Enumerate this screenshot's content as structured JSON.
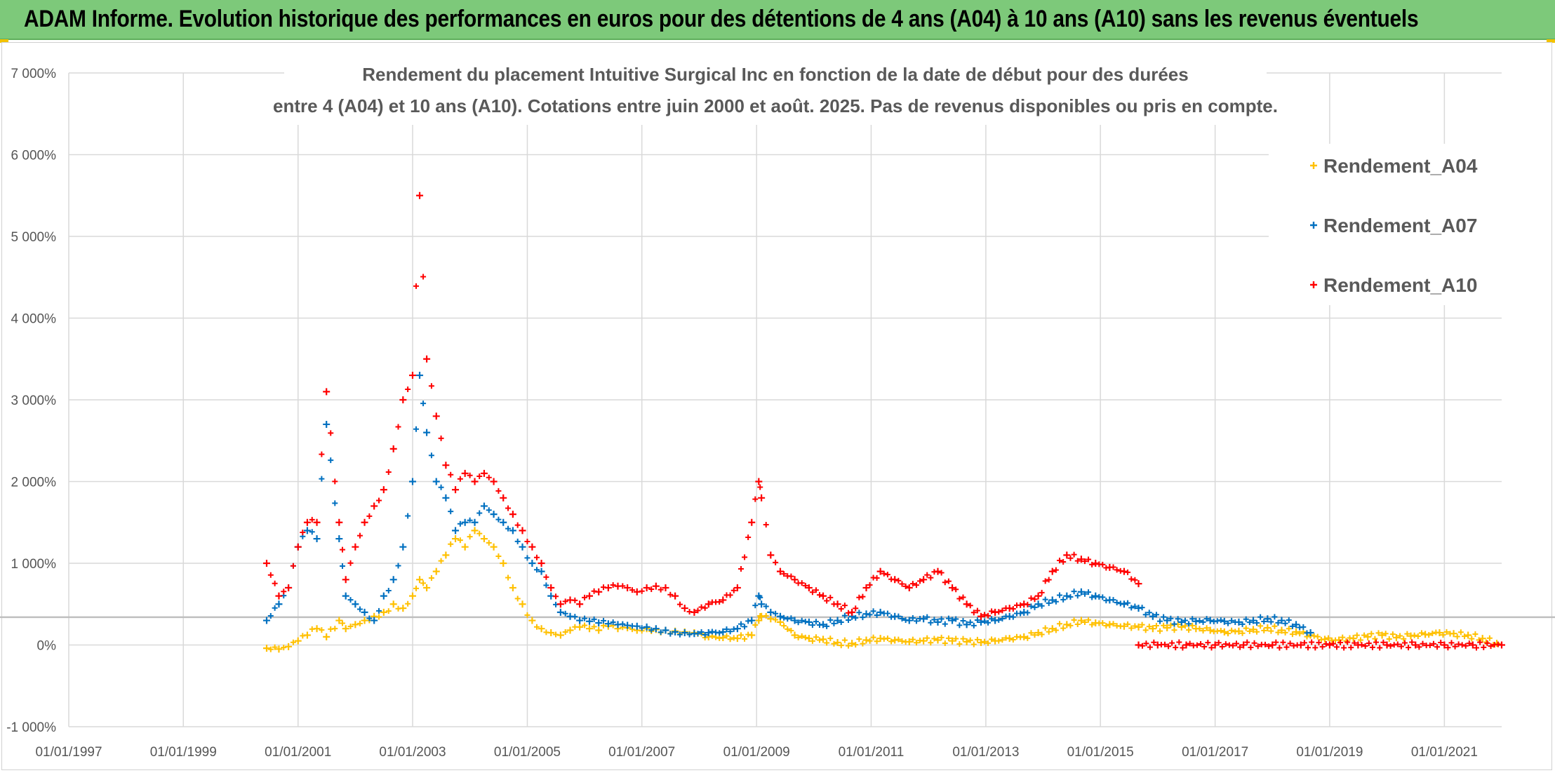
{
  "header": {
    "title": "ADAM Informe. Evolution historique des performances en euros pour des détentions de 4 ans (A04) à 10 ans (A10) sans les revenus éventuels"
  },
  "colors": {
    "banner": "#7dc97a",
    "accent": "#f2c200",
    "A04": "#ffc000",
    "A07": "#0070c0",
    "A10": "#ff0000"
  },
  "chart_data": {
    "type": "scatter",
    "marker": "plus",
    "title_lines": [
      "Rendement du placement Intuitive Surgical Inc en fonction de la date de début pour des durées",
      "entre 4 (A04) et 10 ans (A10). Cotations entre juin 2000 et août. 2025. Pas de revenus disponibles ou pris en compte."
    ],
    "x_axis": {
      "type": "date",
      "range": [
        "1997-01-01",
        "2022-01-01"
      ],
      "tick_labels": [
        "01/01/1997",
        "01/01/1999",
        "01/01/2001",
        "01/01/2003",
        "01/01/2005",
        "01/01/2007",
        "01/01/2009",
        "01/01/2011",
        "01/01/2013",
        "01/01/2015",
        "01/01/2017",
        "01/01/2019",
        "01/01/2021"
      ],
      "tick_dates": [
        "1997-01-01",
        "1999-01-01",
        "2001-01-01",
        "2003-01-01",
        "2005-01-01",
        "2007-01-01",
        "2009-01-01",
        "2011-01-01",
        "2013-01-01",
        "2015-01-01",
        "2017-01-01",
        "2019-01-01",
        "2021-01-01"
      ]
    },
    "y_axis": {
      "range": [
        -1000,
        7000
      ],
      "unit": "%",
      "tick_values": [
        -1000,
        0,
        1000,
        2000,
        3000,
        4000,
        5000,
        6000,
        7000
      ],
      "tick_labels": [
        "-1 000%",
        "0%",
        "1 000%",
        "2 000%",
        "3 000%",
        "4 000%",
        "5 000%",
        "6 000%",
        "7 000%"
      ]
    },
    "reference_line_y": 340,
    "grid": true,
    "legend_position": "top-right",
    "series": [
      {
        "name": "Rendement_A04",
        "color_key": "A04",
        "x": [
          "2000-06-15",
          "2000-09-01",
          "2000-11-01",
          "2001-01-01",
          "2001-03-01",
          "2001-05-01",
          "2001-07-01",
          "2001-09-20",
          "2001-11-01",
          "2002-01-01",
          "2002-03-01",
          "2002-05-01",
          "2002-07-01",
          "2002-09-01",
          "2002-11-01",
          "2003-01-01",
          "2003-02-15",
          "2003-04-01",
          "2003-06-01",
          "2003-08-01",
          "2003-10-01",
          "2003-12-01",
          "2004-02-01",
          "2004-04-01",
          "2004-06-01",
          "2004-08-01",
          "2004-10-01",
          "2004-12-01",
          "2005-02-01",
          "2005-04-01",
          "2005-06-01",
          "2005-08-01",
          "2005-10-01",
          "2005-12-01",
          "2006-02-01",
          "2006-04-01",
          "2006-06-01",
          "2006-08-01",
          "2006-10-01",
          "2006-12-01",
          "2007-02-01",
          "2007-04-01",
          "2007-06-01",
          "2007-08-01",
          "2007-10-01",
          "2007-12-01",
          "2008-03-01",
          "2008-06-01",
          "2008-09-01",
          "2008-12-01",
          "2009-01-15",
          "2009-02-01",
          "2009-04-01",
          "2009-06-01",
          "2009-09-01",
          "2009-12-01",
          "2010-03-01",
          "2010-06-01",
          "2010-09-01",
          "2010-12-01",
          "2011-03-01",
          "2011-06-01",
          "2011-09-01",
          "2011-12-01",
          "2012-03-01",
          "2012-06-01",
          "2012-09-01",
          "2012-12-01",
          "2013-03-01",
          "2013-06-01",
          "2013-09-01",
          "2013-12-01",
          "2014-03-01",
          "2014-06-01",
          "2014-09-01",
          "2014-12-01",
          "2015-03-01",
          "2015-06-01",
          "2015-09-01",
          "2015-12-01",
          "2016-03-01",
          "2016-06-01",
          "2016-09-01",
          "2016-12-01",
          "2017-03-01",
          "2017-06-01",
          "2017-09-01",
          "2017-12-01",
          "2018-03-01",
          "2018-06-01",
          "2018-09-01",
          "2018-12-01",
          "2019-03-01",
          "2019-06-01",
          "2019-09-01",
          "2019-12-01",
          "2020-03-01",
          "2020-06-01",
          "2020-09-01",
          "2020-12-01",
          "2021-03-01",
          "2021-06-01",
          "2021-09-01",
          "2021-12-01"
        ],
        "y": [
          -40,
          -50,
          -20,
          50,
          120,
          200,
          100,
          300,
          200,
          250,
          300,
          350,
          400,
          500,
          450,
          600,
          800,
          700,
          900,
          1100,
          1300,
          1200,
          1400,
          1300,
          1200,
          1000,
          700,
          500,
          300,
          200,
          150,
          120,
          180,
          220,
          200,
          180,
          230,
          200,
          210,
          180,
          200,
          190,
          180,
          170,
          160,
          150,
          100,
          90,
          80,
          120,
          300,
          350,
          320,
          280,
          120,
          80,
          70,
          30,
          20,
          60,
          80,
          60,
          40,
          50,
          60,
          50,
          40,
          30,
          50,
          80,
          100,
          150,
          200,
          250,
          300,
          270,
          250,
          230,
          220,
          200,
          210,
          220,
          200,
          180,
          160,
          170,
          190,
          210,
          180,
          160,
          120,
          70,
          60,
          80,
          100,
          120,
          90,
          110,
          130,
          150,
          140,
          120,
          80,
          20
        ]
      },
      {
        "name": "Rendement_A07",
        "color_key": "A07",
        "x": [
          "2000-06-15",
          "2000-09-01",
          "2000-11-01",
          "2001-01-01",
          "2001-03-01",
          "2001-05-01",
          "2001-07-01",
          "2001-09-20",
          "2001-11-01",
          "2002-01-01",
          "2002-03-01",
          "2002-05-01",
          "2002-07-01",
          "2002-09-01",
          "2002-11-01",
          "2003-01-01",
          "2003-02-15",
          "2003-04-01",
          "2003-06-01",
          "2003-08-01",
          "2003-10-01",
          "2003-12-01",
          "2004-02-01",
          "2004-04-01",
          "2004-06-01",
          "2004-08-01",
          "2004-10-01",
          "2004-12-01",
          "2005-02-01",
          "2005-04-01",
          "2005-06-01",
          "2005-08-01",
          "2005-10-01",
          "2005-12-01",
          "2006-02-01",
          "2006-04-01",
          "2006-06-01",
          "2006-08-01",
          "2006-10-01",
          "2006-12-01",
          "2007-02-01",
          "2007-04-01",
          "2007-06-01",
          "2007-08-01",
          "2007-10-01",
          "2007-12-01",
          "2008-03-01",
          "2008-06-01",
          "2008-09-01",
          "2008-12-01",
          "2009-01-15",
          "2009-02-01",
          "2009-04-01",
          "2009-06-01",
          "2009-09-01",
          "2009-12-01",
          "2010-03-01",
          "2010-06-01",
          "2010-09-01",
          "2010-12-01",
          "2011-03-01",
          "2011-06-01",
          "2011-09-01",
          "2011-12-01",
          "2012-03-01",
          "2012-06-01",
          "2012-09-01",
          "2012-12-01",
          "2013-03-01",
          "2013-06-01",
          "2013-09-01",
          "2013-12-01",
          "2014-03-01",
          "2014-06-01",
          "2014-09-01",
          "2014-12-01",
          "2015-03-01",
          "2015-06-01",
          "2015-09-01",
          "2015-12-01",
          "2016-03-01",
          "2016-06-01",
          "2016-09-01",
          "2016-12-01",
          "2017-03-01",
          "2017-06-01",
          "2017-09-01",
          "2017-12-01",
          "2018-03-01",
          "2018-06-01",
          "2018-09-01"
        ],
        "y": [
          300,
          500,
          700,
          1200,
          1400,
          1300,
          2700,
          1300,
          600,
          500,
          400,
          300,
          600,
          800,
          1200,
          2000,
          3300,
          2600,
          2000,
          1800,
          1400,
          1500,
          1500,
          1700,
          1600,
          1500,
          1400,
          1200,
          1000,
          900,
          600,
          400,
          350,
          300,
          290,
          270,
          260,
          250,
          240,
          230,
          220,
          200,
          180,
          160,
          150,
          140,
          150,
          160,
          200,
          300,
          600,
          500,
          400,
          350,
          300,
          280,
          250,
          300,
          350,
          380,
          400,
          350,
          300,
          320,
          280,
          300,
          250,
          280,
          300,
          350,
          400,
          500,
          550,
          600,
          650,
          600,
          550,
          500,
          450,
          350,
          300,
          280,
          290,
          300,
          290,
          280,
          300,
          320,
          300,
          250,
          150
        ]
      },
      {
        "name": "Rendement_A10",
        "color_key": "A10",
        "x": [
          "2000-06-15",
          "2000-09-01",
          "2000-11-01",
          "2001-01-01",
          "2001-03-01",
          "2001-05-01",
          "2001-07-01",
          "2001-09-20",
          "2001-11-01",
          "2002-01-01",
          "2002-03-01",
          "2002-05-01",
          "2002-07-01",
          "2002-09-01",
          "2002-11-01",
          "2003-01-01",
          "2003-02-15",
          "2003-04-01",
          "2003-06-01",
          "2003-08-01",
          "2003-10-01",
          "2003-12-01",
          "2004-02-01",
          "2004-04-01",
          "2004-06-01",
          "2004-08-01",
          "2004-10-01",
          "2004-12-01",
          "2005-02-01",
          "2005-04-01",
          "2005-06-01",
          "2005-08-01",
          "2005-10-01",
          "2005-12-01",
          "2006-02-01",
          "2006-04-01",
          "2006-06-01",
          "2006-08-01",
          "2006-10-01",
          "2006-12-01",
          "2007-02-01",
          "2007-04-01",
          "2007-06-01",
          "2007-08-01",
          "2007-10-01",
          "2007-12-01",
          "2008-03-01",
          "2008-06-01",
          "2008-09-01",
          "2008-12-01",
          "2009-01-15",
          "2009-02-01",
          "2009-04-01",
          "2009-06-01",
          "2009-09-01",
          "2009-12-01",
          "2010-03-01",
          "2010-06-01",
          "2010-09-01",
          "2010-12-01",
          "2011-03-01",
          "2011-06-01",
          "2011-09-01",
          "2011-12-01",
          "2012-03-01",
          "2012-06-01",
          "2012-09-01",
          "2012-12-01",
          "2013-03-01",
          "2013-06-01",
          "2013-09-01",
          "2013-12-01",
          "2014-03-01",
          "2014-06-01",
          "2014-09-01",
          "2014-12-01",
          "2015-03-01",
          "2015-06-01",
          "2015-09-01"
        ],
        "y": [
          1000,
          600,
          700,
          1200,
          1500,
          1500,
          3100,
          1500,
          800,
          1200,
          1500,
          1700,
          1900,
          2400,
          3000,
          3300,
          5500,
          3500,
          2800,
          2200,
          1900,
          2100,
          2000,
          2100,
          2000,
          1800,
          1600,
          1400,
          1200,
          1000,
          700,
          500,
          550,
          500,
          600,
          650,
          700,
          720,
          700,
          650,
          700,
          720,
          700,
          600,
          450,
          400,
          500,
          550,
          700,
          1500,
          2000,
          1800,
          1100,
          900,
          800,
          700,
          600,
          500,
          400,
          700,
          900,
          800,
          700,
          800,
          900,
          700,
          500,
          350,
          400,
          450,
          500,
          600,
          900,
          1100,
          1050,
          1000,
          950,
          900,
          750
        ]
      },
      {
        "name": "",
        "color_key": "A10",
        "x": [
          "2015-09-01",
          "2016-01-01",
          "2016-07-01",
          "2017-01-01",
          "2017-07-01",
          "2018-01-01",
          "2018-07-01",
          "2019-01-01",
          "2019-07-01",
          "2020-01-01",
          "2020-07-01",
          "2021-01-01",
          "2021-07-01",
          "2022-01-01"
        ],
        "y": [
          0,
          0,
          0,
          0,
          0,
          0,
          0,
          0,
          0,
          0,
          0,
          0,
          0,
          0
        ]
      }
    ],
    "legend": [
      "Rendement_A04",
      "Rendement_A07",
      "Rendement_A10"
    ]
  }
}
